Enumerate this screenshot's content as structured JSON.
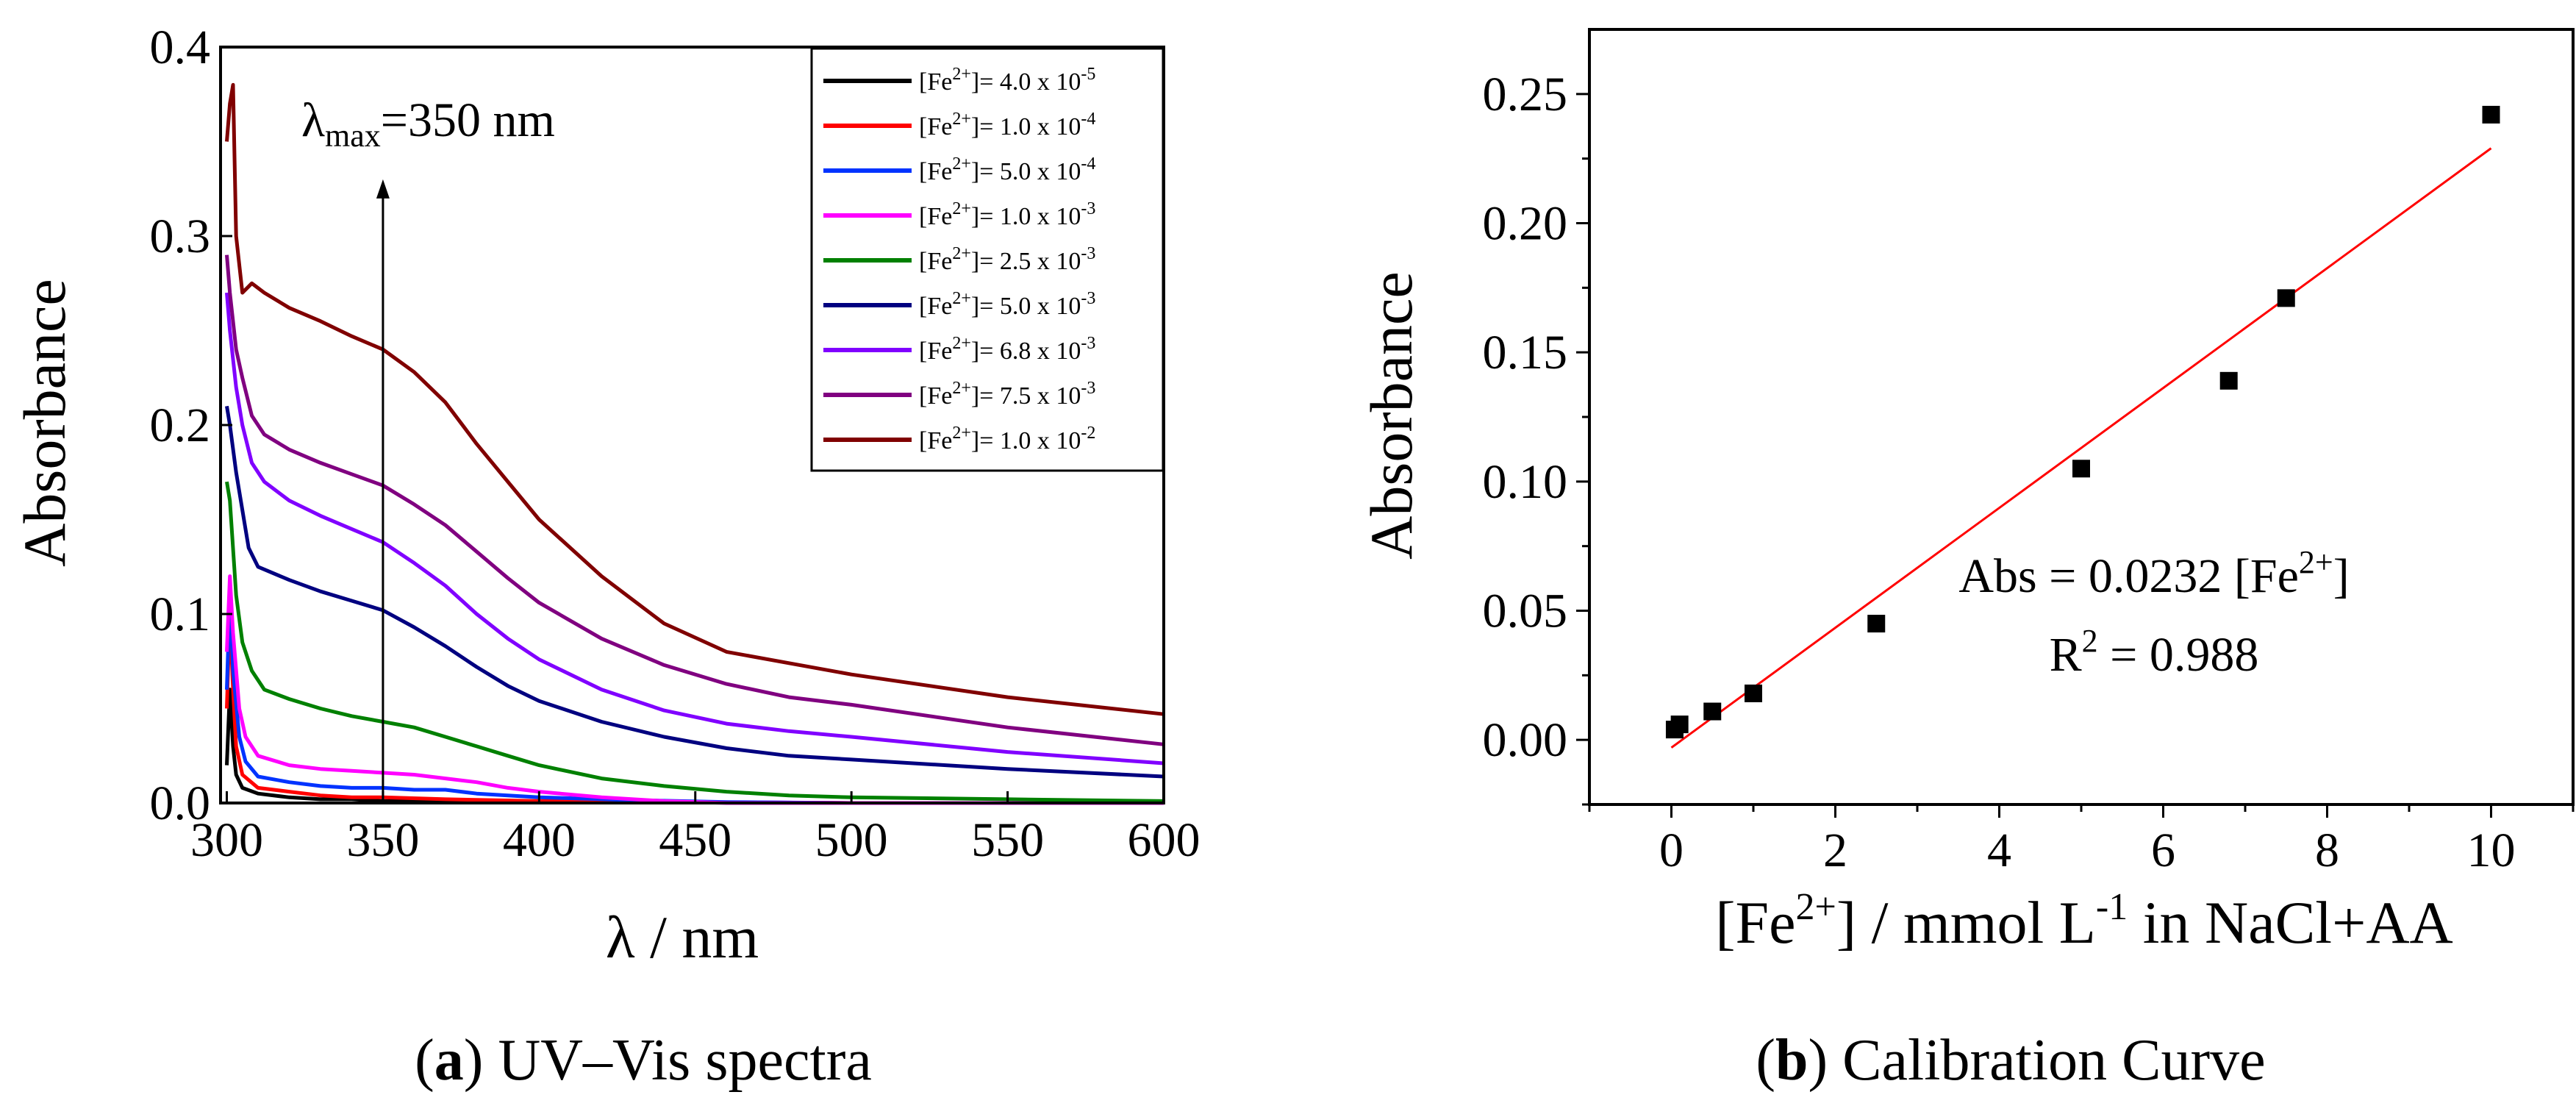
{
  "chart_data": [
    {
      "type": "line",
      "panel": "a",
      "caption_letter": "a",
      "caption_text": " UV–Vis spectra",
      "xlabel": "λ / nm",
      "ylabel": "Absorbance",
      "xlim": [
        298,
        600
      ],
      "ylim": [
        0,
        0.4
      ],
      "xticks": [
        300,
        350,
        400,
        450,
        500,
        550,
        600
      ],
      "xtick_labels": [
        "300",
        "350",
        "400",
        "450",
        "500",
        "550",
        "600"
      ],
      "yticks": [
        0.0,
        0.1,
        0.2,
        0.3,
        0.4
      ],
      "ytick_labels": [
        "0.0",
        "0.1",
        "0.2",
        "0.3",
        "0.4"
      ],
      "legend_position": "top-right",
      "annotation": {
        "prefix": "λ",
        "subscript": "max",
        "suffix": "=350 nm",
        "arrow_x": 350,
        "arrow_y_from": 0.0,
        "arrow_y_to": 0.33
      },
      "series": [
        {
          "name": "[Fe2+]= 4.0 x 10-5",
          "label_pre": "[Fe",
          "label_sup": "2+",
          "label_mid": "]= 4.0 x 10",
          "label_exp": "-5",
          "color": "#000000",
          "points": [
            [
              300,
              0.02
            ],
            [
              301,
              0.06
            ],
            [
              302,
              0.03
            ],
            [
              303,
              0.015
            ],
            [
              305,
              0.008
            ],
            [
              310,
              0.005
            ],
            [
              320,
              0.003
            ],
            [
              330,
              0.002
            ],
            [
              340,
              0.002
            ],
            [
              350,
              0.001
            ],
            [
              400,
              0.001
            ],
            [
              450,
              0.0005
            ],
            [
              500,
              0.0
            ],
            [
              550,
              0.0
            ],
            [
              600,
              0.0
            ]
          ]
        },
        {
          "name": "[Fe2+]= 1.0 x 10-4",
          "label_pre": "[Fe",
          "label_sup": "2+",
          "label_mid": "]= 1.0 x 10",
          "label_exp": "-4",
          "color": "#ff0000",
          "points": [
            [
              300,
              0.05
            ],
            [
              301,
              0.1
            ],
            [
              302,
              0.06
            ],
            [
              303,
              0.03
            ],
            [
              305,
              0.015
            ],
            [
              310,
              0.008
            ],
            [
              320,
              0.006
            ],
            [
              330,
              0.004
            ],
            [
              340,
              0.003
            ],
            [
              350,
              0.003
            ],
            [
              370,
              0.002
            ],
            [
              400,
              0.001
            ],
            [
              450,
              0.0005
            ],
            [
              500,
              0.0
            ],
            [
              550,
              0.0
            ],
            [
              600,
              0.0
            ]
          ]
        },
        {
          "name": "[Fe2+]= 5.0 x 10-4",
          "label_pre": "[Fe",
          "label_sup": "2+",
          "label_mid": "]= 5.0 x 10",
          "label_exp": "-4",
          "color": "#0033ff",
          "points": [
            [
              300,
              0.06
            ],
            [
              301,
              0.11
            ],
            [
              302,
              0.07
            ],
            [
              304,
              0.035
            ],
            [
              306,
              0.022
            ],
            [
              310,
              0.014
            ],
            [
              320,
              0.011
            ],
            [
              330,
              0.009
            ],
            [
              340,
              0.008
            ],
            [
              350,
              0.008
            ],
            [
              360,
              0.007
            ],
            [
              370,
              0.007
            ],
            [
              380,
              0.005
            ],
            [
              400,
              0.003
            ],
            [
              430,
              0.0015
            ],
            [
              460,
              0.0005
            ],
            [
              500,
              0.0
            ],
            [
              550,
              0.0
            ],
            [
              600,
              0.0
            ]
          ]
        },
        {
          "name": "[Fe2+]= 1.0 x 10-3",
          "label_pre": "[Fe",
          "label_sup": "2+",
          "label_mid": "]= 1.0 x 10",
          "label_exp": "-3",
          "color": "#ff00ff",
          "points": [
            [
              300,
              0.08
            ],
            [
              301,
              0.12
            ],
            [
              302,
              0.09
            ],
            [
              304,
              0.05
            ],
            [
              306,
              0.035
            ],
            [
              310,
              0.025
            ],
            [
              320,
              0.02
            ],
            [
              330,
              0.018
            ],
            [
              340,
              0.017
            ],
            [
              350,
              0.016
            ],
            [
              360,
              0.015
            ],
            [
              370,
              0.013
            ],
            [
              380,
              0.011
            ],
            [
              390,
              0.008
            ],
            [
              400,
              0.006
            ],
            [
              420,
              0.003
            ],
            [
              440,
              0.001
            ],
            [
              460,
              0.0
            ],
            [
              500,
              0.0
            ],
            [
              550,
              0.0
            ],
            [
              600,
              0.0
            ]
          ]
        },
        {
          "name": "[Fe2+]= 2.5 x 10-3",
          "label_pre": "[Fe",
          "label_sup": "2+",
          "label_mid": "]= 2.5 x 10",
          "label_exp": "-3",
          "color": "#008000",
          "points": [
            [
              300,
              0.17
            ],
            [
              301,
              0.16
            ],
            [
              303,
              0.11
            ],
            [
              305,
              0.085
            ],
            [
              308,
              0.07
            ],
            [
              312,
              0.06
            ],
            [
              320,
              0.055
            ],
            [
              330,
              0.05
            ],
            [
              340,
              0.046
            ],
            [
              350,
              0.043
            ],
            [
              360,
              0.04
            ],
            [
              370,
              0.035
            ],
            [
              380,
              0.03
            ],
            [
              390,
              0.025
            ],
            [
              400,
              0.02
            ],
            [
              420,
              0.013
            ],
            [
              440,
              0.009
            ],
            [
              460,
              0.006
            ],
            [
              480,
              0.004
            ],
            [
              500,
              0.003
            ],
            [
              550,
              0.002
            ],
            [
              600,
              0.001
            ]
          ]
        },
        {
          "name": "[Fe2+]= 5.0 x 10-3",
          "label_pre": "[Fe",
          "label_sup": "2+",
          "label_mid": "]= 5.0 x 10",
          "label_exp": "-3",
          "color": "#000080",
          "points": [
            [
              300,
              0.21
            ],
            [
              301,
              0.2
            ],
            [
              303,
              0.175
            ],
            [
              305,
              0.155
            ],
            [
              307,
              0.135
            ],
            [
              310,
              0.125
            ],
            [
              320,
              0.118
            ],
            [
              330,
              0.112
            ],
            [
              340,
              0.107
            ],
            [
              350,
              0.102
            ],
            [
              360,
              0.093
            ],
            [
              370,
              0.083
            ],
            [
              380,
              0.072
            ],
            [
              390,
              0.062
            ],
            [
              400,
              0.054
            ],
            [
              420,
              0.043
            ],
            [
              440,
              0.035
            ],
            [
              460,
              0.029
            ],
            [
              480,
              0.025
            ],
            [
              500,
              0.023
            ],
            [
              550,
              0.018
            ],
            [
              600,
              0.014
            ]
          ]
        },
        {
          "name": "[Fe2+]= 6.8 x 10-3",
          "label_pre": "[Fe",
          "label_sup": "2+",
          "label_mid": "]= 6.8 x 10",
          "label_exp": "-3",
          "color": "#8000ff",
          "points": [
            [
              300,
              0.27
            ],
            [
              301,
              0.25
            ],
            [
              303,
              0.22
            ],
            [
              305,
              0.2
            ],
            [
              308,
              0.18
            ],
            [
              312,
              0.17
            ],
            [
              320,
              0.16
            ],
            [
              330,
              0.152
            ],
            [
              340,
              0.145
            ],
            [
              350,
              0.138
            ],
            [
              360,
              0.127
            ],
            [
              370,
              0.115
            ],
            [
              380,
              0.1
            ],
            [
              390,
              0.087
            ],
            [
              400,
              0.076
            ],
            [
              420,
              0.06
            ],
            [
              440,
              0.049
            ],
            [
              460,
              0.042
            ],
            [
              480,
              0.038
            ],
            [
              500,
              0.035
            ],
            [
              550,
              0.027
            ],
            [
              600,
              0.021
            ]
          ]
        },
        {
          "name": "[Fe2+]= 7.5 x 10-3",
          "label_pre": "[Fe",
          "label_sup": "2+",
          "label_mid": "]= 7.5 x 10",
          "label_exp": "-3",
          "color": "#800080",
          "points": [
            [
              300,
              0.29
            ],
            [
              301,
              0.27
            ],
            [
              303,
              0.24
            ],
            [
              305,
              0.225
            ],
            [
              308,
              0.205
            ],
            [
              312,
              0.195
            ],
            [
              320,
              0.187
            ],
            [
              330,
              0.18
            ],
            [
              340,
              0.174
            ],
            [
              350,
              0.168
            ],
            [
              360,
              0.158
            ],
            [
              370,
              0.147
            ],
            [
              380,
              0.133
            ],
            [
              390,
              0.119
            ],
            [
              400,
              0.106
            ],
            [
              420,
              0.087
            ],
            [
              440,
              0.073
            ],
            [
              460,
              0.063
            ],
            [
              480,
              0.056
            ],
            [
              500,
              0.052
            ],
            [
              550,
              0.04
            ],
            [
              600,
              0.031
            ]
          ]
        },
        {
          "name": "[Fe2+]= 1.0 x 10-2",
          "label_pre": "[Fe",
          "label_sup": "2+",
          "label_mid": "]= 1.0 x 10",
          "label_exp": "-2",
          "color": "#800000",
          "points": [
            [
              300,
              0.35
            ],
            [
              301,
              0.37
            ],
            [
              302,
              0.38
            ],
            [
              303,
              0.3
            ],
            [
              305,
              0.27
            ],
            [
              308,
              0.275
            ],
            [
              312,
              0.27
            ],
            [
              320,
              0.262
            ],
            [
              330,
              0.255
            ],
            [
              340,
              0.247
            ],
            [
              350,
              0.24
            ],
            [
              360,
              0.228
            ],
            [
              370,
              0.212
            ],
            [
              380,
              0.19
            ],
            [
              390,
              0.17
            ],
            [
              400,
              0.15
            ],
            [
              420,
              0.12
            ],
            [
              440,
              0.095
            ],
            [
              460,
              0.08
            ],
            [
              480,
              0.074
            ],
            [
              500,
              0.068
            ],
            [
              550,
              0.056
            ],
            [
              600,
              0.047
            ]
          ]
        }
      ]
    },
    {
      "type": "scatter",
      "panel": "b",
      "caption_letter": "b",
      "caption_text": " Calibration Curve",
      "xlabel_pre": "[Fe",
      "xlabel_sup": "2+",
      "xlabel_mid": "] / mmol L",
      "xlabel_exp": "-1",
      "xlabel_post": " in NaCl+AA",
      "ylabel": "Absorbance",
      "xlim": [
        -1,
        11
      ],
      "ylim": [
        -0.025,
        0.275
      ],
      "xticks": [
        0,
        2,
        4,
        6,
        8,
        10
      ],
      "xtick_labels": [
        "0",
        "2",
        "4",
        "6",
        "8",
        "10"
      ],
      "yticks": [
        0.0,
        0.05,
        0.1,
        0.15,
        0.2,
        0.25
      ],
      "ytick_labels": [
        "0.00",
        "0.05",
        "0.10",
        "0.15",
        "0.20",
        "0.25"
      ],
      "points": [
        [
          0.04,
          0.004
        ],
        [
          0.1,
          0.006
        ],
        [
          0.5,
          0.011
        ],
        [
          1.0,
          0.018
        ],
        [
          2.5,
          0.045
        ],
        [
          5.0,
          0.105
        ],
        [
          6.8,
          0.139
        ],
        [
          7.5,
          0.171
        ],
        [
          10.0,
          0.242
        ]
      ],
      "marker_color": "#000000",
      "fit": {
        "slope": 0.0232,
        "intercept": -0.003,
        "x_range": [
          0,
          10
        ],
        "color": "#ff0000"
      },
      "equation": {
        "pre": "Abs = 0.0232 [Fe",
        "sup": "2+",
        "post": "]",
        "r2_pre": "R",
        "r2_sup": "2",
        "r2_post": " = 0.988"
      }
    }
  ]
}
